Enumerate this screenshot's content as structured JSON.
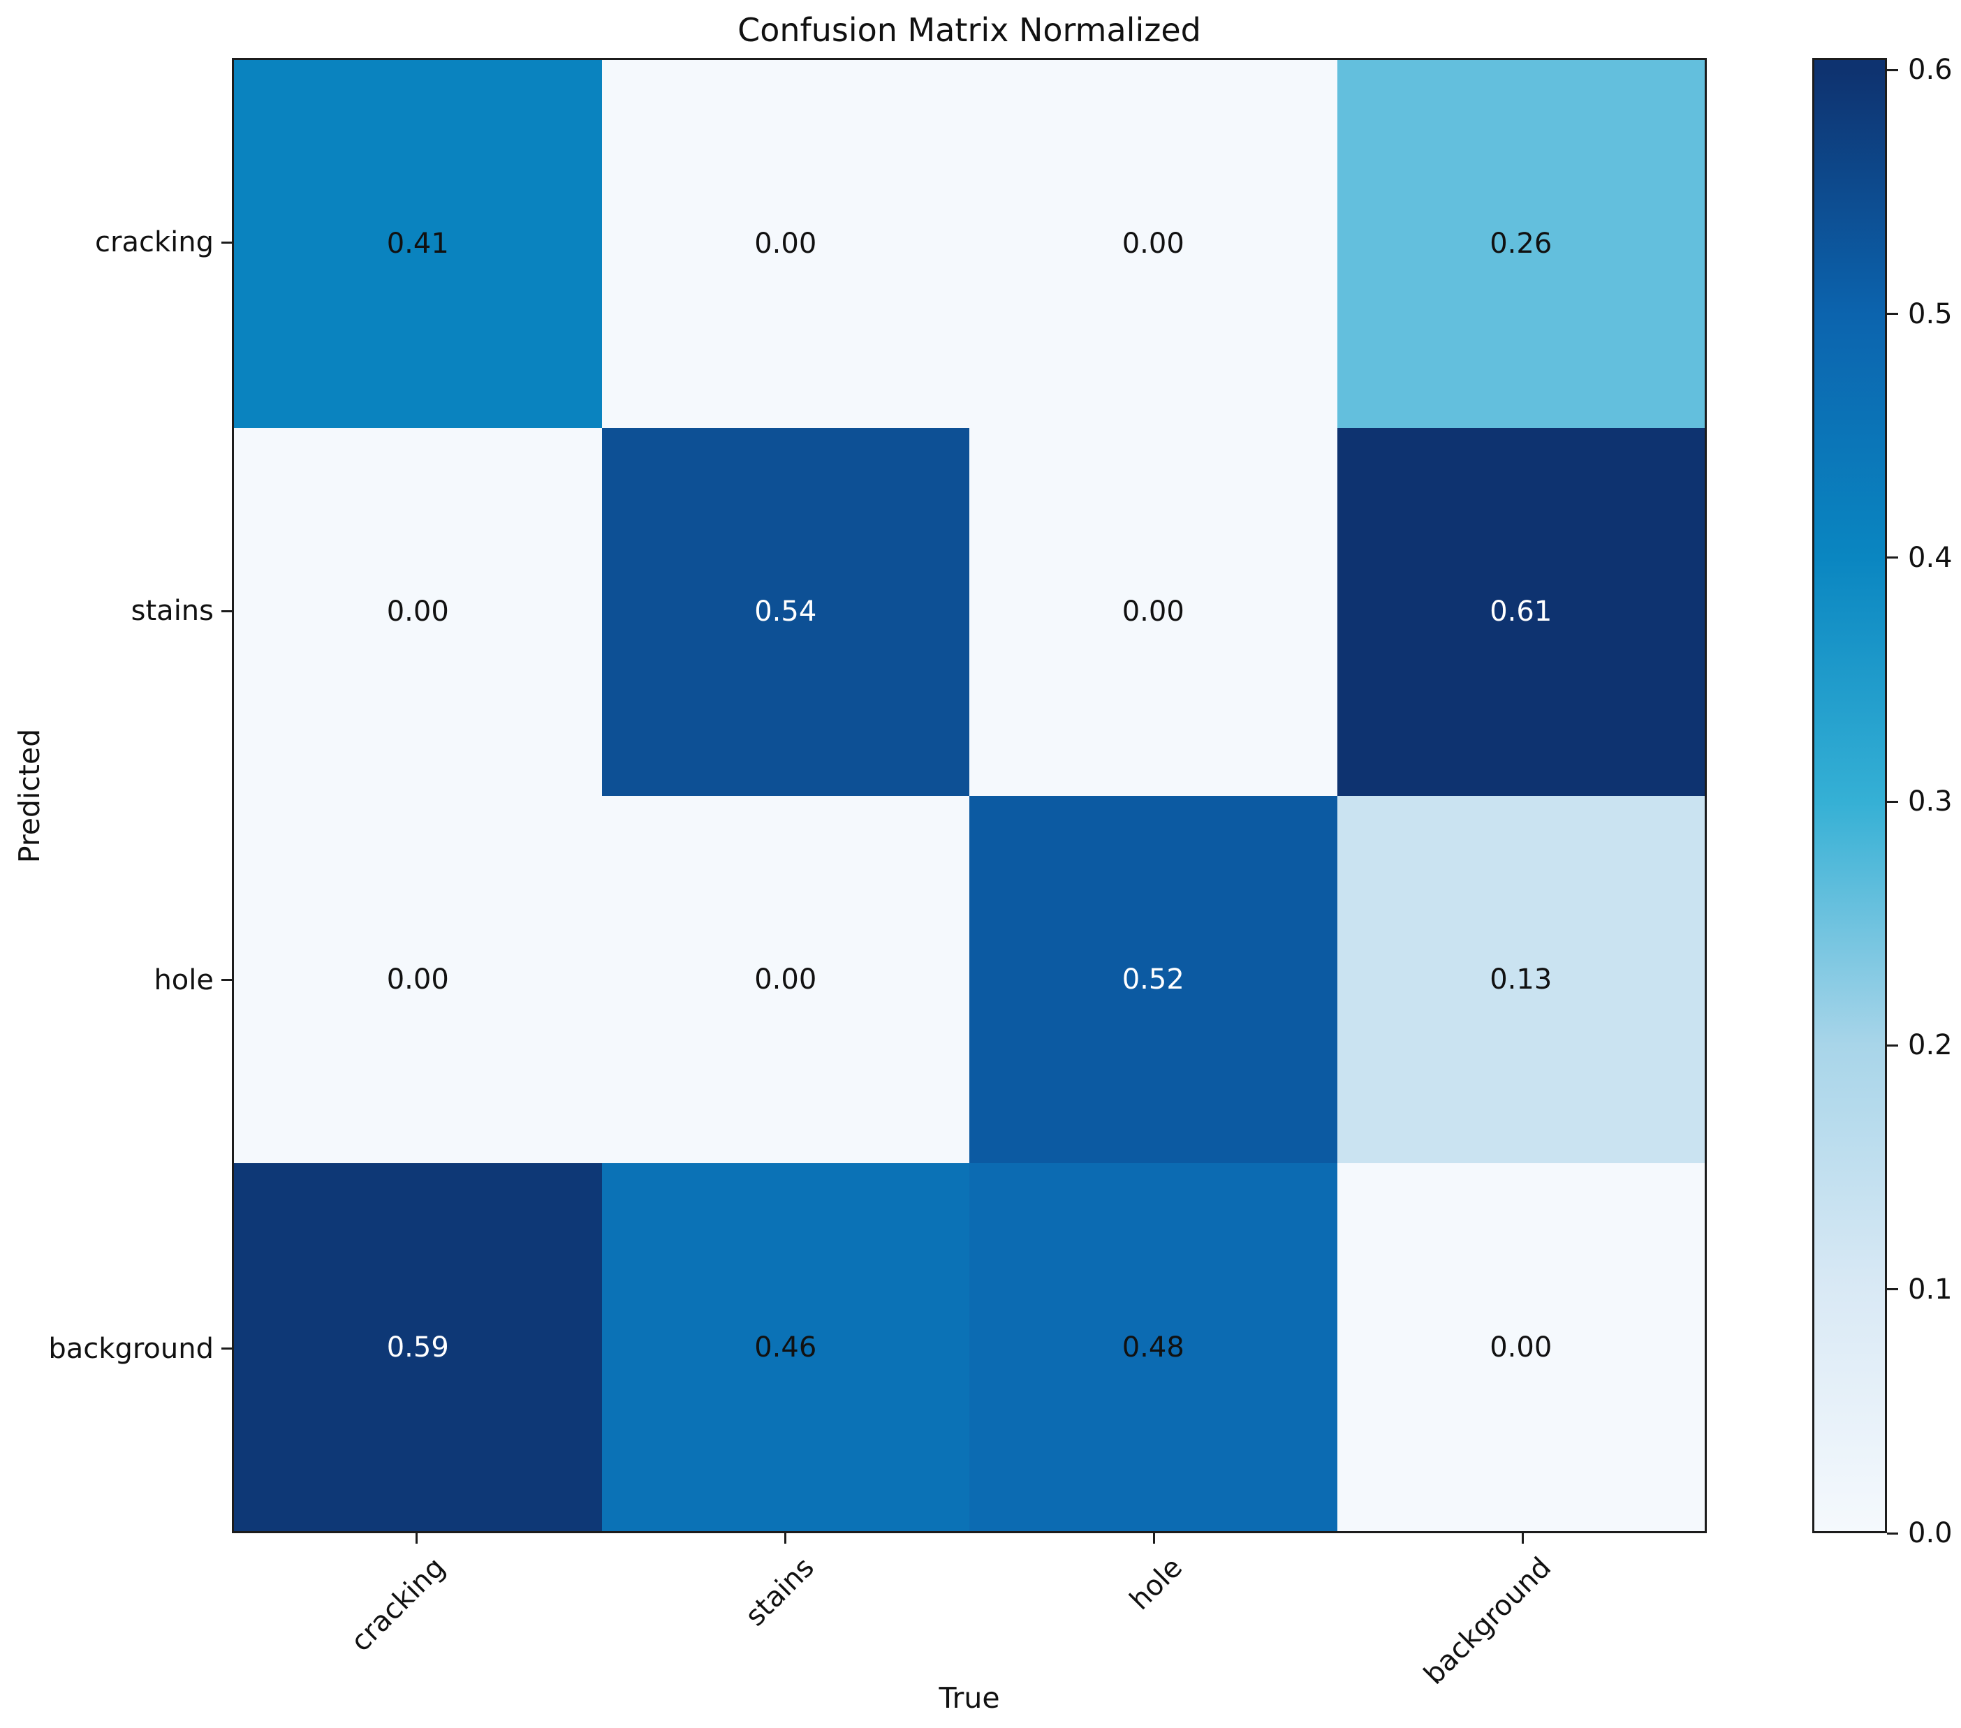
{
  "chart_data": {
    "type": "heatmap",
    "title": "Confusion Matrix Normalized",
    "xlabel": "True",
    "ylabel": "Predicted",
    "x_categories": [
      "cracking",
      "stains",
      "hole",
      "background"
    ],
    "y_categories": [
      "cracking",
      "stains",
      "hole",
      "background"
    ],
    "matrix": [
      [
        0.41,
        0.0,
        0.0,
        0.26
      ],
      [
        0.0,
        0.54,
        0.0,
        0.61
      ],
      [
        0.0,
        0.0,
        0.52,
        0.13
      ],
      [
        0.59,
        0.46,
        0.48,
        0.0
      ]
    ],
    "value_decimals": 2,
    "grid": false,
    "colorbar": {
      "ticks": [
        0.6,
        0.5,
        0.4,
        0.3,
        0.2,
        0.1,
        0.0
      ],
      "vmin": 0,
      "vmax": 0.605,
      "position": "right"
    },
    "colormap_stops": [
      [
        0.0,
        "#f5f9fd"
      ],
      [
        0.1,
        "#d9e9f5"
      ],
      [
        0.2,
        "#a8d5e9"
      ],
      [
        0.3,
        "#35b0d5"
      ],
      [
        0.4,
        "#0a86c1"
      ],
      [
        0.5,
        "#0c64ae"
      ],
      [
        0.6,
        "#0e3370"
      ]
    ],
    "white_text_threshold": 0.5,
    "cell_text_dark": "#111111",
    "cell_text_light": "#ffffff",
    "spine_color": "#1c1c1c"
  }
}
